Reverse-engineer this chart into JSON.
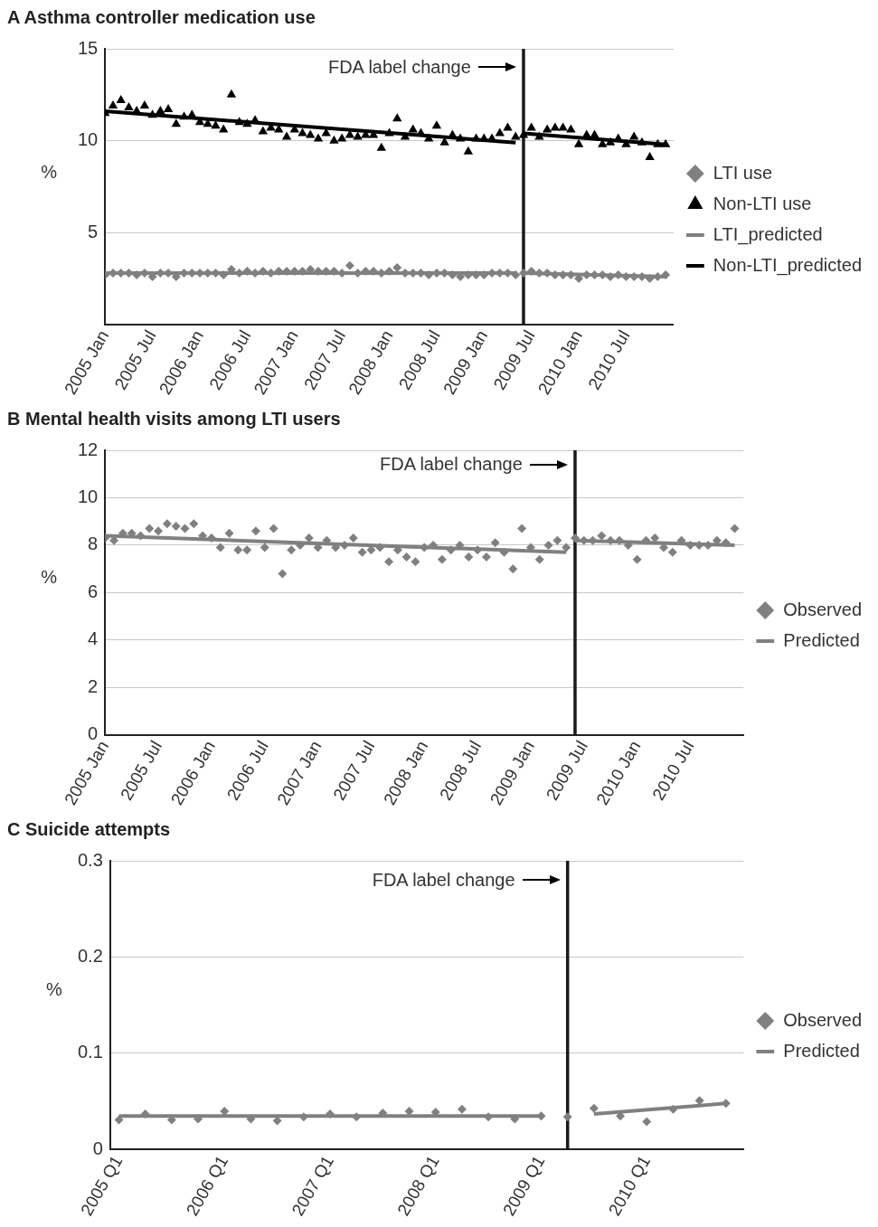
{
  "chart_data": [
    {
      "type": "scatter",
      "title": "A Asthma controller medication use",
      "ylabel": "%",
      "x": [
        "2005-01",
        "2005-02",
        "2005-03",
        "2005-04",
        "2005-05",
        "2005-06",
        "2005-07",
        "2005-08",
        "2005-09",
        "2005-10",
        "2005-11",
        "2005-12",
        "2006-01",
        "2006-02",
        "2006-03",
        "2006-04",
        "2006-05",
        "2006-06",
        "2006-07",
        "2006-08",
        "2006-09",
        "2006-10",
        "2006-11",
        "2006-12",
        "2007-01",
        "2007-02",
        "2007-03",
        "2007-04",
        "2007-05",
        "2007-06",
        "2007-07",
        "2007-08",
        "2007-09",
        "2007-10",
        "2007-11",
        "2007-12",
        "2008-01",
        "2008-02",
        "2008-03",
        "2008-04",
        "2008-05",
        "2008-06",
        "2008-07",
        "2008-08",
        "2008-09",
        "2008-10",
        "2008-11",
        "2008-12",
        "2009-01",
        "2009-02",
        "2009-03",
        "2009-04",
        "2009-05",
        "2009-06",
        "2009-07",
        "2009-08",
        "2009-09",
        "2009-10",
        "2009-11",
        "2009-12",
        "2010-01",
        "2010-02",
        "2010-03",
        "2010-04",
        "2010-05",
        "2010-06",
        "2010-07",
        "2010-08",
        "2010-09",
        "2010-10",
        "2010-11",
        "2010-12"
      ],
      "series": [
        {
          "name": "LTI use",
          "marker": "diamond",
          "color": "#808080",
          "values": [
            2.7,
            2.8,
            2.8,
            2.8,
            2.7,
            2.8,
            2.6,
            2.8,
            2.8,
            2.6,
            2.8,
            2.8,
            2.8,
            2.8,
            2.8,
            2.7,
            3.0,
            2.8,
            2.9,
            2.8,
            2.9,
            2.8,
            2.9,
            2.9,
            2.9,
            2.9,
            3.0,
            2.9,
            2.9,
            2.9,
            2.8,
            3.2,
            2.8,
            2.9,
            2.9,
            2.8,
            2.9,
            3.1,
            2.8,
            2.8,
            2.8,
            2.7,
            2.8,
            2.8,
            2.7,
            2.6,
            2.7,
            2.7,
            2.7,
            2.8,
            2.8,
            2.8,
            2.7,
            2.8,
            2.9,
            2.8,
            2.8,
            2.7,
            2.7,
            2.7,
            2.5,
            2.7,
            2.7,
            2.7,
            2.6,
            2.7,
            2.6,
            2.6,
            2.6,
            2.5,
            2.6,
            2.7
          ]
        },
        {
          "name": "LTI_predicted",
          "type": "line",
          "marker": "none",
          "color": "#808080",
          "x": [
            "2005-01",
            "2009-05",
            "2009-06",
            "2010-12"
          ],
          "values": [
            2.8,
            2.8,
            2.8,
            2.6
          ]
        },
        {
          "name": "Non-LTI use",
          "marker": "triangle",
          "color": "#000000",
          "values": [
            11.5,
            11.9,
            12.2,
            11.8,
            11.6,
            11.9,
            11.4,
            11.6,
            11.7,
            10.9,
            11.3,
            11.4,
            11.0,
            10.9,
            10.8,
            10.6,
            12.5,
            11.0,
            10.9,
            11.1,
            10.5,
            10.7,
            10.6,
            10.2,
            10.6,
            10.4,
            10.3,
            10.1,
            10.4,
            10.0,
            10.1,
            10.3,
            10.2,
            10.3,
            10.3,
            9.6,
            10.4,
            11.2,
            10.2,
            10.6,
            10.4,
            10.1,
            10.8,
            9.9,
            10.3,
            10.1,
            9.4,
            10.1,
            10.1,
            10.1,
            10.4,
            10.7,
            10.2,
            10.3,
            10.7,
            10.2,
            10.6,
            10.7,
            10.7,
            10.6,
            9.8,
            10.3,
            10.3,
            9.8,
            9.9,
            10.1,
            9.8,
            10.2,
            9.9,
            9.1,
            9.8,
            9.8
          ]
        },
        {
          "name": "Non-LTI_predicted",
          "type": "line",
          "marker": "none",
          "color": "#000000",
          "x": [
            "2005-01",
            "2009-05",
            "2009-06",
            "2010-12"
          ],
          "values": [
            11.6,
            9.9,
            10.4,
            9.8
          ]
        }
      ],
      "xlim": [
        "2005-01",
        "2011-01"
      ],
      "xticks": [
        {
          "value": "2005-01",
          "label": "2005 Jan"
        },
        {
          "value": "2005-07",
          "label": "2005 Jul"
        },
        {
          "value": "2006-01",
          "label": "2006 Jan"
        },
        {
          "value": "2006-07",
          "label": "2006 Jul"
        },
        {
          "value": "2007-01",
          "label": "2007 Jan"
        },
        {
          "value": "2007-07",
          "label": "2007 Jul"
        },
        {
          "value": "2008-01",
          "label": "2008 Jan"
        },
        {
          "value": "2008-07",
          "label": "2008 Jul"
        },
        {
          "value": "2009-01",
          "label": "2009 Jan"
        },
        {
          "value": "2009-07",
          "label": "2009 Jul"
        },
        {
          "value": "2010-01",
          "label": "2010 Jan"
        },
        {
          "value": "2010-07",
          "label": "2010 Jul"
        }
      ],
      "ylim": [
        0,
        15
      ],
      "yticks": [
        5,
        10,
        15
      ],
      "grid": "y",
      "legend": "right",
      "ref_lines": [
        {
          "axis": "x",
          "value": "2009-06",
          "color": "#1a1a1a"
        }
      ],
      "annotations": [
        {
          "text": "FDA label change",
          "x": "2009-06",
          "y": 14
        }
      ]
    },
    {
      "type": "scatter",
      "title": "B Mental health visits among LTI users",
      "ylabel": "%",
      "x": [
        "2005-01",
        "2005-02",
        "2005-03",
        "2005-04",
        "2005-05",
        "2005-06",
        "2005-07",
        "2005-08",
        "2005-09",
        "2005-10",
        "2005-11",
        "2005-12",
        "2006-01",
        "2006-02",
        "2006-03",
        "2006-04",
        "2006-05",
        "2006-06",
        "2006-07",
        "2006-08",
        "2006-09",
        "2006-10",
        "2006-11",
        "2006-12",
        "2007-01",
        "2007-02",
        "2007-03",
        "2007-04",
        "2007-05",
        "2007-06",
        "2007-07",
        "2007-08",
        "2007-09",
        "2007-10",
        "2007-11",
        "2007-12",
        "2008-01",
        "2008-02",
        "2008-03",
        "2008-04",
        "2008-05",
        "2008-06",
        "2008-07",
        "2008-08",
        "2008-09",
        "2008-10",
        "2008-11",
        "2008-12",
        "2009-01",
        "2009-02",
        "2009-03",
        "2009-04",
        "2009-05",
        "2009-06",
        "2009-07",
        "2009-08",
        "2009-09",
        "2009-10",
        "2009-11",
        "2009-12",
        "2010-01",
        "2010-02",
        "2010-03",
        "2010-04",
        "2010-05",
        "2010-06",
        "2010-07",
        "2010-08",
        "2010-09",
        "2010-10",
        "2010-11",
        "2010-12"
      ],
      "series": [
        {
          "name": "Observed",
          "marker": "diamond",
          "color": "#808080",
          "values": [
            8.3,
            8.2,
            8.5,
            8.5,
            8.4,
            8.7,
            8.6,
            8.9,
            8.8,
            8.7,
            8.9,
            8.4,
            8.3,
            7.9,
            8.5,
            7.8,
            7.8,
            8.6,
            7.9,
            8.7,
            6.8,
            7.8,
            8.0,
            8.3,
            7.9,
            8.2,
            7.9,
            8.0,
            8.3,
            7.7,
            7.8,
            7.9,
            7.3,
            7.8,
            7.5,
            7.3,
            7.9,
            8.0,
            7.4,
            7.8,
            8.0,
            7.5,
            7.8,
            7.5,
            8.1,
            7.7,
            7.0,
            8.7,
            7.9,
            7.4,
            8.0,
            8.2,
            7.9,
            8.3,
            8.2,
            8.2,
            8.4,
            8.2,
            8.2,
            8.0,
            7.4,
            8.2,
            8.3,
            7.9,
            7.7,
            8.2,
            8.0,
            8.0,
            8.0,
            8.2,
            8.1,
            8.7
          ]
        },
        {
          "name": "Predicted",
          "type": "line",
          "marker": "none",
          "color": "#808080",
          "x": [
            "2005-01",
            "2009-05",
            "2009-06",
            "2010-12"
          ],
          "values": [
            8.4,
            7.7,
            8.2,
            8.0
          ]
        }
      ],
      "xlim": [
        "2005-01",
        "2011-01"
      ],
      "xticks": [
        {
          "value": "2005-01",
          "label": "2005 Jan"
        },
        {
          "value": "2005-07",
          "label": "2005 Jul"
        },
        {
          "value": "2006-01",
          "label": "2006 Jan"
        },
        {
          "value": "2006-07",
          "label": "2006 Jul"
        },
        {
          "value": "2007-01",
          "label": "2007 Jan"
        },
        {
          "value": "2007-07",
          "label": "2007 Jul"
        },
        {
          "value": "2008-01",
          "label": "2008 Jan"
        },
        {
          "value": "2008-07",
          "label": "2008 Jul"
        },
        {
          "value": "2009-01",
          "label": "2009 Jan"
        },
        {
          "value": "2009-07",
          "label": "2009 Jul"
        },
        {
          "value": "2010-01",
          "label": "2010 Jan"
        },
        {
          "value": "2010-07",
          "label": "2010 Jul"
        }
      ],
      "ylim": [
        0,
        12
      ],
      "yticks": [
        0,
        2,
        4,
        6,
        8,
        10,
        12
      ],
      "grid": "y",
      "legend": "right",
      "ref_lines": [
        {
          "axis": "x",
          "value": "2009-06",
          "color": "#1a1a1a"
        }
      ],
      "annotations": [
        {
          "text": "FDA label change",
          "x": "2009-06",
          "y": 11.4
        }
      ]
    },
    {
      "type": "scatter",
      "title": "C Suicide attempts",
      "ylabel": "%",
      "x": [
        "2005-01",
        "2005-04",
        "2005-07",
        "2005-10",
        "2006-01",
        "2006-04",
        "2006-07",
        "2006-10",
        "2007-01",
        "2007-04",
        "2007-07",
        "2007-10",
        "2008-01",
        "2008-04",
        "2008-07",
        "2008-10",
        "2009-01",
        "2009-04",
        "2009-07",
        "2009-10",
        "2010-01",
        "2010-04",
        "2010-07",
        "2010-10"
      ],
      "series": [
        {
          "name": "Observed",
          "marker": "diamond",
          "color": "#808080",
          "values": [
            0.031,
            0.037,
            0.031,
            0.032,
            0.04,
            0.032,
            0.03,
            0.034,
            0.037,
            0.034,
            0.038,
            0.04,
            0.039,
            0.042,
            0.034,
            0.032,
            0.035,
            0.034,
            0.043,
            0.035,
            0.029,
            0.042,
            0.051,
            0.048
          ]
        },
        {
          "name": "Predicted",
          "type": "line",
          "marker": "none",
          "color": "#808080",
          "x": [
            "2005-01",
            "2009-01",
            "2009-07",
            "2010-10"
          ],
          "values": [
            0.035,
            0.035,
            0.037,
            0.048
          ]
        }
      ],
      "xlim": [
        "2004-12",
        "2010-12"
      ],
      "xticks": [
        {
          "value": "2005-01",
          "label": "2005 Q1"
        },
        {
          "value": "2006-01",
          "label": "2006 Q1"
        },
        {
          "value": "2007-01",
          "label": "2007 Q1"
        },
        {
          "value": "2008-01",
          "label": "2008 Q1"
        },
        {
          "value": "2009-01",
          "label": "2009 Q1"
        },
        {
          "value": "2010-01",
          "label": "2010 Q1"
        }
      ],
      "ylim": [
        0,
        0.3
      ],
      "yticks": [
        0,
        0.1,
        0.2,
        0.3
      ],
      "grid": "y",
      "legend": "right",
      "ref_lines": [
        {
          "axis": "x",
          "value": "2009-04",
          "color": "#1a1a1a"
        }
      ],
      "annotations": [
        {
          "text": "FDA label change",
          "x": "2009-04",
          "y": 0.28
        }
      ]
    }
  ]
}
